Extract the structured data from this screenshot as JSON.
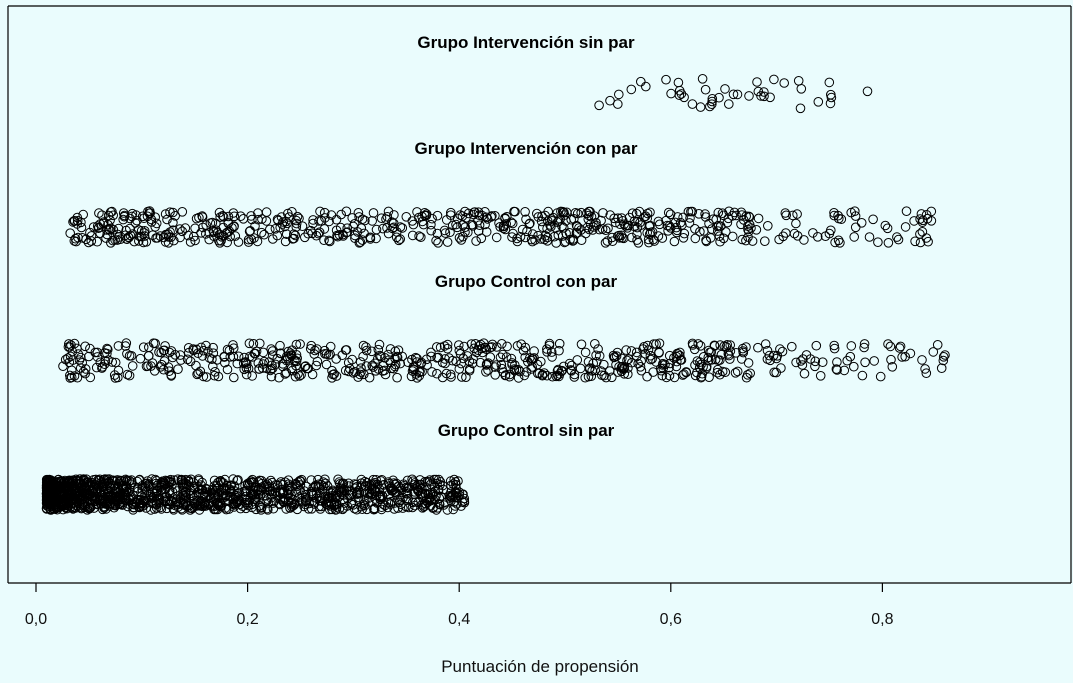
{
  "chart_data": {
    "type": "scatter",
    "subtype": "stripchart",
    "xlabel": "Puntuación de propensión",
    "ylabel": "",
    "xlim": [
      0,
      0.98
    ],
    "xticks": [
      {
        "value": 0.0,
        "label": "0,0"
      },
      {
        "value": 0.2,
        "label": "0,2"
      },
      {
        "value": 0.4,
        "label": "0,4"
      },
      {
        "value": 0.6,
        "label": "0,6"
      },
      {
        "value": 0.8,
        "label": "0,8"
      }
    ],
    "grid": false,
    "legend": "none",
    "point_shape": "open-circle",
    "colors": {
      "background": "#eafcfd",
      "points": "#000000",
      "axis": "#000000"
    },
    "series": [
      {
        "name": "Grupo Intervención sin par",
        "n": 45,
        "x_range": [
          0.53,
          0.79
        ],
        "distribution": "uniform",
        "seed": 11
      },
      {
        "name": "Grupo Intervención con par",
        "n": 650,
        "x_range": [
          0.03,
          0.86
        ],
        "distribution": "decreasing-tail",
        "seed": 23
      },
      {
        "name": "Grupo Control con par",
        "n": 650,
        "x_range": [
          0.025,
          0.86
        ],
        "distribution": "decreasing-tail",
        "seed": 37
      },
      {
        "name": "Grupo Control sin par",
        "n": 1300,
        "x_range": [
          0.01,
          0.405
        ],
        "distribution": "dense-left",
        "seed": 53
      }
    ]
  }
}
